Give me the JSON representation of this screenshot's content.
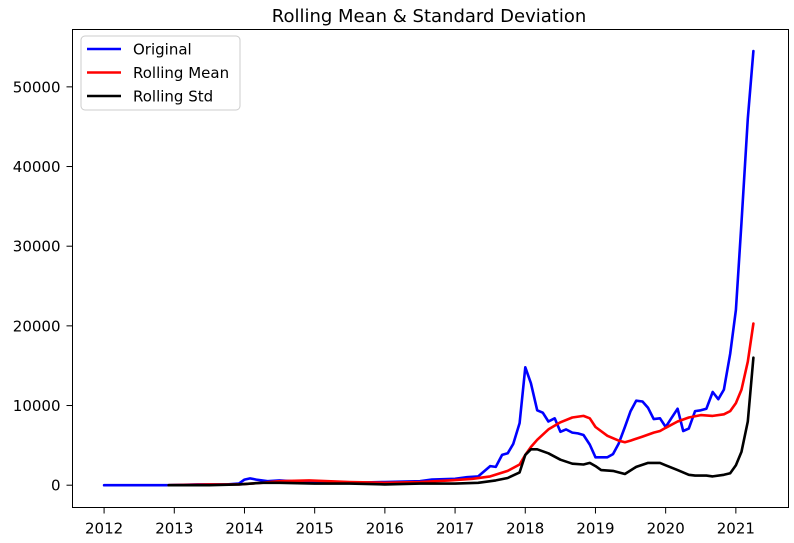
{
  "chart_data": {
    "type": "line",
    "title": "Rolling Mean & Standard Deviation",
    "xlabel": "",
    "ylabel": "",
    "x_ticks": [
      "2012",
      "2013",
      "2014",
      "2015",
      "2016",
      "2017",
      "2018",
      "2019",
      "2020",
      "2021"
    ],
    "y_ticks": [
      "0",
      "10000",
      "20000",
      "30000",
      "40000",
      "50000"
    ],
    "xlim": [
      2011.55,
      2021.75
    ],
    "ylim": [
      -2800,
      57200
    ],
    "grid": false,
    "legend_position": "top-left",
    "series": [
      {
        "name": "Original",
        "color": "#0000ff",
        "x": [
          2012.0,
          2012.5,
          2012.92,
          2013.33,
          2013.75,
          2013.92,
          2014.0,
          2014.08,
          2014.17,
          2014.33,
          2014.5,
          2014.67,
          2015.0,
          2015.5,
          2016.0,
          2016.5,
          2016.67,
          2017.0,
          2017.17,
          2017.33,
          2017.5,
          2017.58,
          2017.67,
          2017.75,
          2017.83,
          2017.92,
          2018.0,
          2018.08,
          2018.17,
          2018.25,
          2018.33,
          2018.42,
          2018.5,
          2018.58,
          2018.67,
          2018.75,
          2018.83,
          2018.92,
          2019.0,
          2019.08,
          2019.17,
          2019.25,
          2019.33,
          2019.42,
          2019.5,
          2019.58,
          2019.67,
          2019.75,
          2019.83,
          2019.92,
          2020.0,
          2020.08,
          2020.17,
          2020.25,
          2020.33,
          2020.42,
          2020.5,
          2020.58,
          2020.67,
          2020.75,
          2020.83,
          2020.92,
          2021.0,
          2021.08,
          2021.17,
          2021.25
        ],
        "values": [
          0,
          0,
          0,
          100,
          100,
          200,
          700,
          850,
          700,
          500,
          600,
          500,
          400,
          300,
          400,
          500,
          700,
          800,
          1000,
          1100,
          2400,
          2300,
          3800,
          4000,
          5200,
          7800,
          14800,
          12800,
          9400,
          9100,
          8000,
          8400,
          6700,
          7000,
          6600,
          6500,
          6300,
          5100,
          3500,
          3500,
          3500,
          3900,
          5200,
          7300,
          9300,
          10600,
          10500,
          9700,
          8300,
          8400,
          7300,
          8400,
          9600,
          6800,
          7100,
          9300,
          9400,
          9600,
          11700,
          10800,
          12000,
          16500,
          22000,
          33000,
          46000,
          54500
        ]
      },
      {
        "name": "Rolling Mean",
        "color": "#ff0000",
        "x": [
          2012.92,
          2013.5,
          2013.92,
          2014.25,
          2014.5,
          2014.92,
          2015.5,
          2016.0,
          2016.5,
          2016.92,
          2017.25,
          2017.5,
          2017.75,
          2017.92,
          2018.0,
          2018.08,
          2018.17,
          2018.33,
          2018.5,
          2018.67,
          2018.83,
          2018.92,
          2019.0,
          2019.17,
          2019.33,
          2019.42,
          2019.5,
          2019.67,
          2019.83,
          2019.92,
          2020.0,
          2020.17,
          2020.33,
          2020.5,
          2020.67,
          2020.83,
          2020.92,
          2021.0,
          2021.08,
          2021.17,
          2021.25
        ],
        "values": [
          0,
          100,
          100,
          300,
          500,
          600,
          400,
          300,
          400,
          600,
          800,
          1100,
          1800,
          2600,
          3800,
          4800,
          5700,
          7000,
          7900,
          8500,
          8700,
          8400,
          7300,
          6200,
          5600,
          5400,
          5600,
          6100,
          6600,
          6800,
          7200,
          8000,
          8500,
          8800,
          8700,
          8900,
          9300,
          10300,
          12000,
          15500,
          20300
        ]
      },
      {
        "name": "Rolling Std",
        "color": "#000000",
        "x": [
          2012.92,
          2013.5,
          2013.92,
          2014.25,
          2014.5,
          2015.0,
          2015.5,
          2016.0,
          2016.5,
          2017.0,
          2017.33,
          2017.58,
          2017.75,
          2017.92,
          2018.0,
          2018.08,
          2018.17,
          2018.33,
          2018.5,
          2018.67,
          2018.83,
          2018.92,
          2019.0,
          2019.08,
          2019.25,
          2019.42,
          2019.58,
          2019.75,
          2019.92,
          2020.0,
          2020.17,
          2020.33,
          2020.42,
          2020.58,
          2020.67,
          2020.83,
          2020.92,
          2021.0,
          2021.08,
          2021.17,
          2021.25
        ],
        "values": [
          0,
          0,
          100,
          300,
          300,
          200,
          200,
          100,
          200,
          200,
          300,
          600,
          900,
          1600,
          3800,
          4500,
          4500,
          4000,
          3200,
          2700,
          2600,
          2800,
          2400,
          1900,
          1800,
          1400,
          2300,
          2800,
          2800,
          2500,
          1900,
          1300,
          1200,
          1200,
          1100,
          1300,
          1500,
          2500,
          4200,
          8000,
          16000
        ]
      }
    ]
  }
}
